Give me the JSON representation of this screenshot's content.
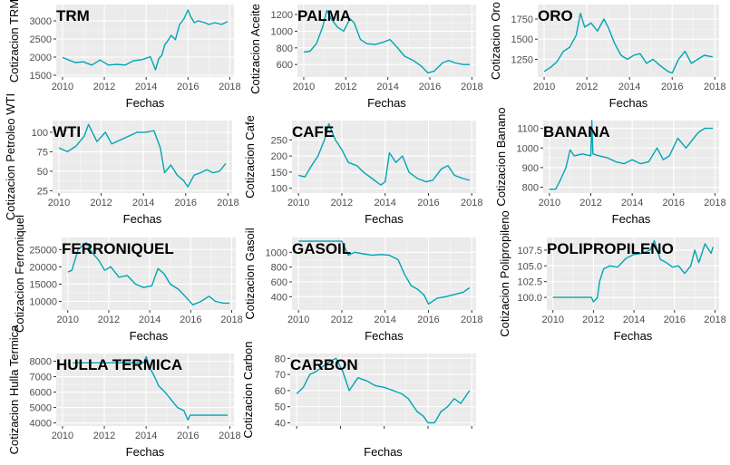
{
  "style": {
    "panel_bg": "#ebebeb",
    "grid_major": "#ffffff",
    "line_color": "#00a5b4"
  },
  "chart_data": [
    {
      "type": "line",
      "title": "TRM",
      "xlabel": "Fechas",
      "ylabel": "Cotizacion TRM",
      "xlim": [
        2009.7,
        2018.2
      ],
      "ylim": [
        1450,
        3450
      ],
      "xticks": [
        2010,
        2012,
        2014,
        2016,
        2018
      ],
      "yticks": [
        1500,
        2000,
        2500,
        3000
      ],
      "ytick_labels": [
        "1500",
        "2000",
        "2500",
        "3000"
      ],
      "series": [
        {
          "x": [
            2010.0,
            2010.3,
            2010.6,
            2011.0,
            2011.4,
            2011.8,
            2012.2,
            2012.6,
            2013.0,
            2013.4,
            2013.8,
            2014.2,
            2014.45,
            2014.6,
            2014.75,
            2014.9,
            2015.0,
            2015.2,
            2015.4,
            2015.6,
            2015.8,
            2016.0,
            2016.1,
            2016.3,
            2016.5,
            2016.8,
            2017.0,
            2017.3,
            2017.6,
            2017.9
          ],
          "y": [
            1990,
            1920,
            1850,
            1870,
            1780,
            1920,
            1780,
            1800,
            1780,
            1900,
            1930,
            2010,
            1650,
            1950,
            2050,
            2350,
            2420,
            2600,
            2480,
            2900,
            3050,
            3300,
            3150,
            2950,
            3000,
            2950,
            2900,
            2950,
            2900,
            2980
          ]
        }
      ]
    },
    {
      "type": "line",
      "title": "PALMA",
      "xlabel": "Fechas",
      "ylabel": "Cotizacion Aceite de",
      "xlim": [
        2009.7,
        2018.2
      ],
      "ylim": [
        450,
        1320
      ],
      "xticks": [
        2010,
        2012,
        2014,
        2016,
        2018
      ],
      "yticks": [
        600,
        800,
        1000,
        1200
      ],
      "ytick_labels": [
        "600",
        "800",
        "1000",
        "1200"
      ],
      "series": [
        {
          "x": [
            2010.0,
            2010.3,
            2010.6,
            2010.9,
            2011.1,
            2011.3,
            2011.6,
            2011.9,
            2012.2,
            2012.4,
            2012.7,
            2013.0,
            2013.4,
            2013.8,
            2014.1,
            2014.4,
            2014.8,
            2015.2,
            2015.6,
            2015.9,
            2016.2,
            2016.6,
            2016.9,
            2017.2,
            2017.6,
            2017.9
          ],
          "y": [
            750,
            760,
            850,
            1050,
            1250,
            1150,
            1050,
            1000,
            1150,
            1100,
            900,
            850,
            840,
            870,
            900,
            820,
            700,
            650,
            580,
            500,
            520,
            620,
            650,
            620,
            600,
            600
          ]
        }
      ]
    },
    {
      "type": "line",
      "title": "ORO",
      "xlabel": "Fechas",
      "ylabel": "Cotizacion Oro",
      "xlim": [
        2009.7,
        2018.2
      ],
      "ylim": [
        1030,
        1930
      ],
      "xticks": [
        2010,
        2012,
        2014,
        2016,
        2018
      ],
      "yticks": [
        1250,
        1500,
        1750
      ],
      "ytick_labels": [
        "1250",
        "1500",
        "1750"
      ],
      "series": [
        {
          "x": [
            2010.0,
            2010.3,
            2010.6,
            2010.9,
            2011.2,
            2011.5,
            2011.7,
            2011.9,
            2012.2,
            2012.5,
            2012.8,
            2013.0,
            2013.3,
            2013.6,
            2013.9,
            2014.2,
            2014.5,
            2014.8,
            2015.1,
            2015.4,
            2015.8,
            2016.0,
            2016.3,
            2016.6,
            2016.9,
            2017.2,
            2017.5,
            2017.9
          ],
          "y": [
            1100,
            1150,
            1220,
            1350,
            1400,
            1550,
            1820,
            1650,
            1700,
            1600,
            1750,
            1650,
            1450,
            1300,
            1250,
            1300,
            1320,
            1200,
            1250,
            1180,
            1100,
            1080,
            1250,
            1350,
            1200,
            1250,
            1300,
            1280
          ]
        }
      ]
    },
    {
      "type": "line",
      "title": "WTI",
      "xlabel": "Fechas",
      "ylabel": "Cotizacion Petroleo WTI",
      "xlim": [
        2009.7,
        2018.2
      ],
      "ylim": [
        22,
        115
      ],
      "xticks": [
        2010,
        2012,
        2014,
        2016,
        2018
      ],
      "yticks": [
        25,
        50,
        75,
        100
      ],
      "ytick_labels": [
        "25",
        "50",
        "75",
        "100"
      ],
      "series": [
        {
          "x": [
            2010.0,
            2010.4,
            2010.8,
            2011.2,
            2011.4,
            2011.8,
            2012.2,
            2012.5,
            2012.9,
            2013.3,
            2013.7,
            2014.1,
            2014.5,
            2014.8,
            2015.0,
            2015.3,
            2015.6,
            2015.9,
            2016.1,
            2016.4,
            2016.7,
            2017.0,
            2017.3,
            2017.6,
            2017.9
          ],
          "y": [
            80,
            75,
            82,
            95,
            110,
            88,
            100,
            85,
            90,
            95,
            100,
            100,
            102,
            80,
            48,
            58,
            45,
            38,
            30,
            45,
            48,
            52,
            48,
            50,
            60
          ]
        }
      ]
    },
    {
      "type": "line",
      "title": "CAFE",
      "xlabel": "Fechas",
      "ylabel": "Cotizacion Cafe",
      "xlim": [
        2009.7,
        2018.2
      ],
      "ylim": [
        85,
        310
      ],
      "xticks": [
        2010,
        2012,
        2014,
        2016,
        2018
      ],
      "yticks": [
        100,
        150,
        200,
        250
      ],
      "ytick_labels": [
        "100",
        "150",
        "200",
        "250"
      ],
      "series": [
        {
          "x": [
            2010.0,
            2010.3,
            2010.6,
            2010.9,
            2011.2,
            2011.4,
            2011.7,
            2012.0,
            2012.3,
            2012.7,
            2013.0,
            2013.4,
            2013.8,
            2014.0,
            2014.2,
            2014.5,
            2014.8,
            2015.1,
            2015.5,
            2015.9,
            2016.2,
            2016.6,
            2016.9,
            2017.2,
            2017.6,
            2017.9
          ],
          "y": [
            140,
            135,
            170,
            200,
            250,
            300,
            250,
            220,
            180,
            170,
            150,
            130,
            110,
            120,
            210,
            180,
            200,
            150,
            130,
            120,
            125,
            160,
            170,
            140,
            130,
            125
          ]
        }
      ]
    },
    {
      "type": "line",
      "title": "BANANA",
      "xlabel": "Fechas",
      "ylabel": "Cotizacion Banano",
      "xlim": [
        2009.7,
        2018.2
      ],
      "ylim": [
        770,
        1140
      ],
      "xticks": [
        2010,
        2012,
        2014,
        2016,
        2018
      ],
      "yticks": [
        800,
        900,
        1000,
        1100
      ],
      "ytick_labels": [
        "800",
        "900",
        "1000",
        "1100"
      ],
      "series": [
        {
          "x": [
            2010.0,
            2010.3,
            2010.5,
            2010.8,
            2011.0,
            2011.2,
            2011.6,
            2012.0,
            2012.05,
            2012.1,
            2012.4,
            2012.8,
            2013.2,
            2013.6,
            2014.0,
            2014.4,
            2014.8,
            2015.2,
            2015.5,
            2015.8,
            2016.2,
            2016.6,
            2016.9,
            2017.2,
            2017.5,
            2017.9
          ],
          "y": [
            790,
            790,
            830,
            900,
            990,
            960,
            970,
            960,
            1140,
            970,
            960,
            950,
            930,
            920,
            940,
            920,
            930,
            1000,
            940,
            960,
            1050,
            1000,
            1040,
            1080,
            1100,
            1100
          ]
        }
      ]
    },
    {
      "type": "line",
      "title": "FERRONIQUEL",
      "xlabel": "Fechas",
      "ylabel": "Cotizacion Ferroniquel",
      "xlim": [
        2009.7,
        2018.2
      ],
      "ylim": [
        7500,
        28500
      ],
      "xticks": [
        2010,
        2012,
        2014,
        2016,
        2018
      ],
      "yticks": [
        10000,
        15000,
        20000,
        25000
      ],
      "ytick_labels": [
        "10000",
        "15000",
        "20000",
        "25000"
      ],
      "series": [
        {
          "x": [
            2010.0,
            2010.2,
            2010.5,
            2010.9,
            2011.2,
            2011.5,
            2011.8,
            2012.1,
            2012.5,
            2012.9,
            2013.3,
            2013.7,
            2014.1,
            2014.4,
            2014.7,
            2015.0,
            2015.4,
            2015.8,
            2016.1,
            2016.5,
            2016.9,
            2017.2,
            2017.6,
            2017.9
          ],
          "y": [
            18500,
            19000,
            25000,
            27000,
            24000,
            22000,
            19000,
            20000,
            17000,
            17500,
            15000,
            14000,
            14500,
            19500,
            18000,
            15000,
            13500,
            11000,
            9000,
            10000,
            11500,
            10000,
            9500,
            9500
          ]
        }
      ]
    },
    {
      "type": "line",
      "title": "GASOIL",
      "xlabel": "Fechas",
      "ylabel": "Cotizacion Gasoil",
      "xlim": [
        2009.7,
        2018.2
      ],
      "ylim": [
        220,
        1200
      ],
      "xticks": [
        2010,
        2012,
        2014,
        2016,
        2018
      ],
      "yticks": [
        400,
        600,
        800,
        1000
      ],
      "ytick_labels": [
        "400",
        "600",
        "800",
        "1000"
      ],
      "series": [
        {
          "x": [
            2010.0,
            2010.4,
            2010.8,
            2011.2,
            2011.6,
            2012.0,
            2012.3,
            2012.6,
            2013.0,
            2013.4,
            2013.8,
            2014.2,
            2014.6,
            2014.9,
            2015.2,
            2015.5,
            2015.8,
            2016.0,
            2016.4,
            2016.8,
            2017.2,
            2017.6,
            2017.9
          ],
          "y": [
            1150,
            1150,
            1150,
            1150,
            1150,
            1150,
            960,
            1000,
            980,
            960,
            970,
            960,
            900,
            700,
            550,
            500,
            420,
            300,
            380,
            400,
            430,
            460,
            520
          ]
        }
      ]
    },
    {
      "type": "line",
      "title": "POLIPROPILENO",
      "xlabel": "Fechas",
      "ylabel": "Cotizacion Polipropileno",
      "xlim": [
        2009.7,
        2018.2
      ],
      "ylim": [
        98,
        109.5
      ],
      "xticks": [
        2010,
        2012,
        2014,
        2016,
        2018
      ],
      "yticks": [
        100.0,
        102.5,
        105.0,
        107.5
      ],
      "ytick_labels": [
        "100.0",
        "102.5",
        "105.0",
        "107.5"
      ],
      "series": [
        {
          "x": [
            2010.0,
            2011.0,
            2011.9,
            2012.0,
            2012.2,
            2012.3,
            2012.5,
            2012.8,
            2013.2,
            2013.6,
            2014.0,
            2014.4,
            2014.8,
            2015.0,
            2015.3,
            2015.6,
            2015.9,
            2016.2,
            2016.5,
            2016.8,
            2017.0,
            2017.2,
            2017.5,
            2017.8,
            2017.9
          ],
          "y": [
            100.0,
            100.0,
            100.0,
            99.3,
            100.0,
            102.5,
            104.5,
            105.0,
            104.8,
            106.2,
            106.8,
            107.0,
            107.5,
            109.0,
            106.0,
            105.5,
            104.8,
            105.0,
            103.8,
            105.0,
            107.5,
            105.5,
            108.5,
            107.0,
            108.0
          ]
        }
      ]
    },
    {
      "type": "line",
      "title": "HULLA TERMICA",
      "xlabel": "Fechas",
      "ylabel": "Cotizacion Hulla Termica",
      "xlim": [
        2009.7,
        2018.2
      ],
      "ylim": [
        3800,
        8500
      ],
      "xticks": [
        2010,
        2012,
        2014,
        2016,
        2018
      ],
      "yticks": [
        4000,
        5000,
        6000,
        7000,
        8000
      ],
      "ytick_labels": [
        "4000",
        "5000",
        "6000",
        "7000",
        "8000"
      ],
      "series": [
        {
          "x": [
            2010.5,
            2011.0,
            2012.0,
            2013.0,
            2013.9,
            2014.0,
            2014.2,
            2014.4,
            2014.6,
            2014.9,
            2015.2,
            2015.5,
            2015.8,
            2016.0,
            2016.1,
            2017.0,
            2017.9
          ],
          "y": [
            7900,
            7900,
            7900,
            7900,
            7900,
            8300,
            7500,
            7000,
            6400,
            6000,
            5500,
            5000,
            4800,
            4200,
            4500,
            4500,
            4500
          ]
        }
      ]
    },
    {
      "type": "line",
      "title": "CARBON",
      "xlabel": "Fechas",
      "ylabel": "Cotizacion Carbon",
      "xlim": [
        2009.7,
        2018.2
      ],
      "ylim": [
        38,
        83
      ],
      "xticks": [
        2010,
        2012,
        2014,
        2016,
        2018
      ],
      "yticks": [
        40,
        50,
        60,
        70,
        80
      ],
      "ytick_labels": [
        "40",
        "50",
        "60",
        "70",
        "80"
      ],
      "xtick_labels_hidden": true,
      "series": [
        {
          "x": [
            2010.0,
            2010.3,
            2010.6,
            2010.9,
            2011.2,
            2011.5,
            2011.8,
            2012.1,
            2012.4,
            2012.8,
            2013.2,
            2013.6,
            2014.0,
            2014.4,
            2014.8,
            2015.1,
            2015.5,
            2015.8,
            2016.0,
            2016.3,
            2016.6,
            2016.9,
            2017.2,
            2017.5,
            2017.9
          ],
          "y": [
            58,
            62,
            70,
            72,
            75,
            78,
            80,
            72,
            60,
            68,
            66,
            63,
            62,
            60,
            58,
            55,
            47,
            44,
            40,
            40,
            47,
            50,
            55,
            52,
            60
          ]
        }
      ]
    }
  ]
}
